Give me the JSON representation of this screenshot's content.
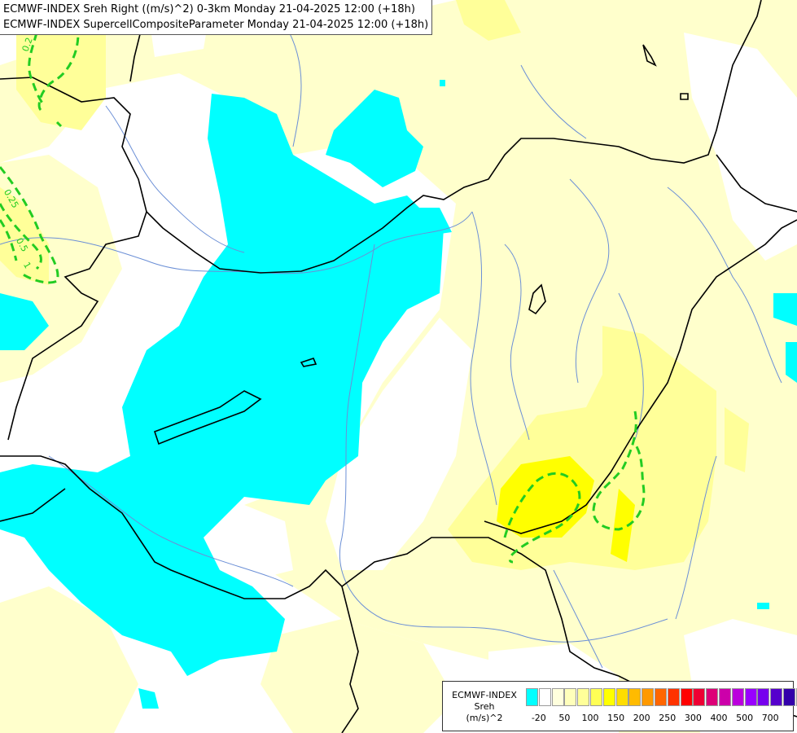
{
  "title": {
    "line1": "ECMWF-INDEX Sreh Right ((m/s)^2) 0-3km Monday 21-04-2025 12:00 (+18h)",
    "line2": "ECMWF-INDEX SupercellCompositeParameter Monday 21-04-2025 12:00 (+18h)"
  },
  "contour_labels": [
    "0.2",
    "0.25",
    "0.5",
    "1"
  ],
  "legend": {
    "line1": "ECMWF-INDEX",
    "line2": "Sreh",
    "line3": "(m/s)^2",
    "colors": [
      "#00ffff",
      "#ffffff",
      "#ffffdd",
      "#ffffbb",
      "#ffff99",
      "#ffff55",
      "#ffff00",
      "#ffdd00",
      "#ffbb00",
      "#ff9900",
      "#ff6600",
      "#ff3300",
      "#ff0000",
      "#ee0033",
      "#dd0077",
      "#cc00aa",
      "#bb00dd",
      "#9900ff",
      "#7700ee",
      "#5500cc",
      "#3300aa",
      "#110077"
    ],
    "ticks": [
      "-20",
      "50",
      "100",
      "150",
      "200",
      "250",
      "300",
      "400",
      "500",
      "700"
    ]
  },
  "colors": {
    "cyan": "#00ffff",
    "pale_yellow": "#ffffcc",
    "light_yellow": "#ffff99",
    "yellow": "#ffff00",
    "border": "#000000",
    "river": "#6b8fd6",
    "scp_contour": "#22cc22"
  }
}
